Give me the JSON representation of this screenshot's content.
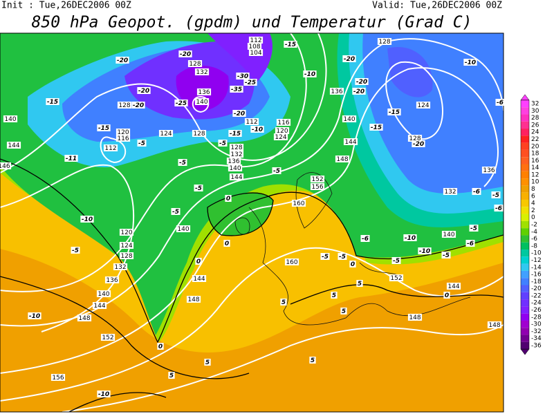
{
  "header": {
    "init": "Init : Tue,26DEC2006 00Z",
    "valid": "Valid: Tue,26DEC2006 00Z",
    "title": "850 hPa Geopot. (gpdm) und Temperatur (Grad C)"
  },
  "legend": {
    "levels": [
      32,
      30,
      28,
      26,
      24,
      22,
      20,
      18,
      16,
      14,
      12,
      10,
      8,
      6,
      4,
      2,
      0,
      -2,
      -4,
      -6,
      -8,
      -10,
      -12,
      -14,
      -16,
      -18,
      -20,
      -22,
      -24,
      -26,
      -28,
      -30,
      -32,
      -34,
      -36
    ],
    "colors": [
      "#ff40ff",
      "#ff40e0",
      "#ff30c0",
      "#ff3090",
      "#ff2060",
      "#ff2020",
      "#ff4020",
      "#ff5020",
      "#ff6020",
      "#ff7010",
      "#ff8000",
      "#ff9000",
      "#f0a000",
      "#f8b000",
      "#f8c800",
      "#f0e000",
      "#d8f000",
      "#a0e000",
      "#60d000",
      "#30c030",
      "#00c060",
      "#00c8a0",
      "#00d0d0",
      "#30c8f0",
      "#40a0ff",
      "#4080ff",
      "#5060ff",
      "#6040ff",
      "#7030ff",
      "#8020ff",
      "#9000f0",
      "#a000d0",
      "#9000b0",
      "#700090",
      "#500070"
    ]
  },
  "geopotential_labels": [
    128,
    112,
    108,
    104,
    128,
    132,
    136,
    140,
    136,
    124,
    128,
    140,
    120,
    116,
    124,
    128,
    112,
    116,
    120,
    124,
    140,
    128,
    112,
    144,
    128,
    132,
    136,
    140,
    144,
    144,
    148,
    152,
    156,
    160,
    136,
    132,
    140,
    120,
    124,
    128,
    132,
    136,
    140,
    144,
    140,
    144,
    148,
    160,
    152,
    144,
    148,
    148,
    152,
    148,
    156,
    146
  ],
  "temperature_labels": [
    -20,
    -20,
    -15,
    -30,
    -35,
    -25,
    -20,
    -15,
    -20,
    -25,
    -20,
    -10,
    -15,
    -15,
    -5,
    -5,
    -11,
    -5,
    -5,
    -5,
    -5,
    -10,
    -5,
    0,
    0,
    0,
    -10,
    -20,
    -20,
    -20,
    -10,
    -15,
    -15,
    -20,
    -6,
    -6,
    -5,
    -6,
    -5,
    -6,
    -10,
    -10,
    -5,
    -6,
    -5,
    -5,
    -5,
    0,
    5,
    5,
    5,
    5,
    0,
    0,
    5,
    5,
    5,
    -10,
    -10
  ]
}
